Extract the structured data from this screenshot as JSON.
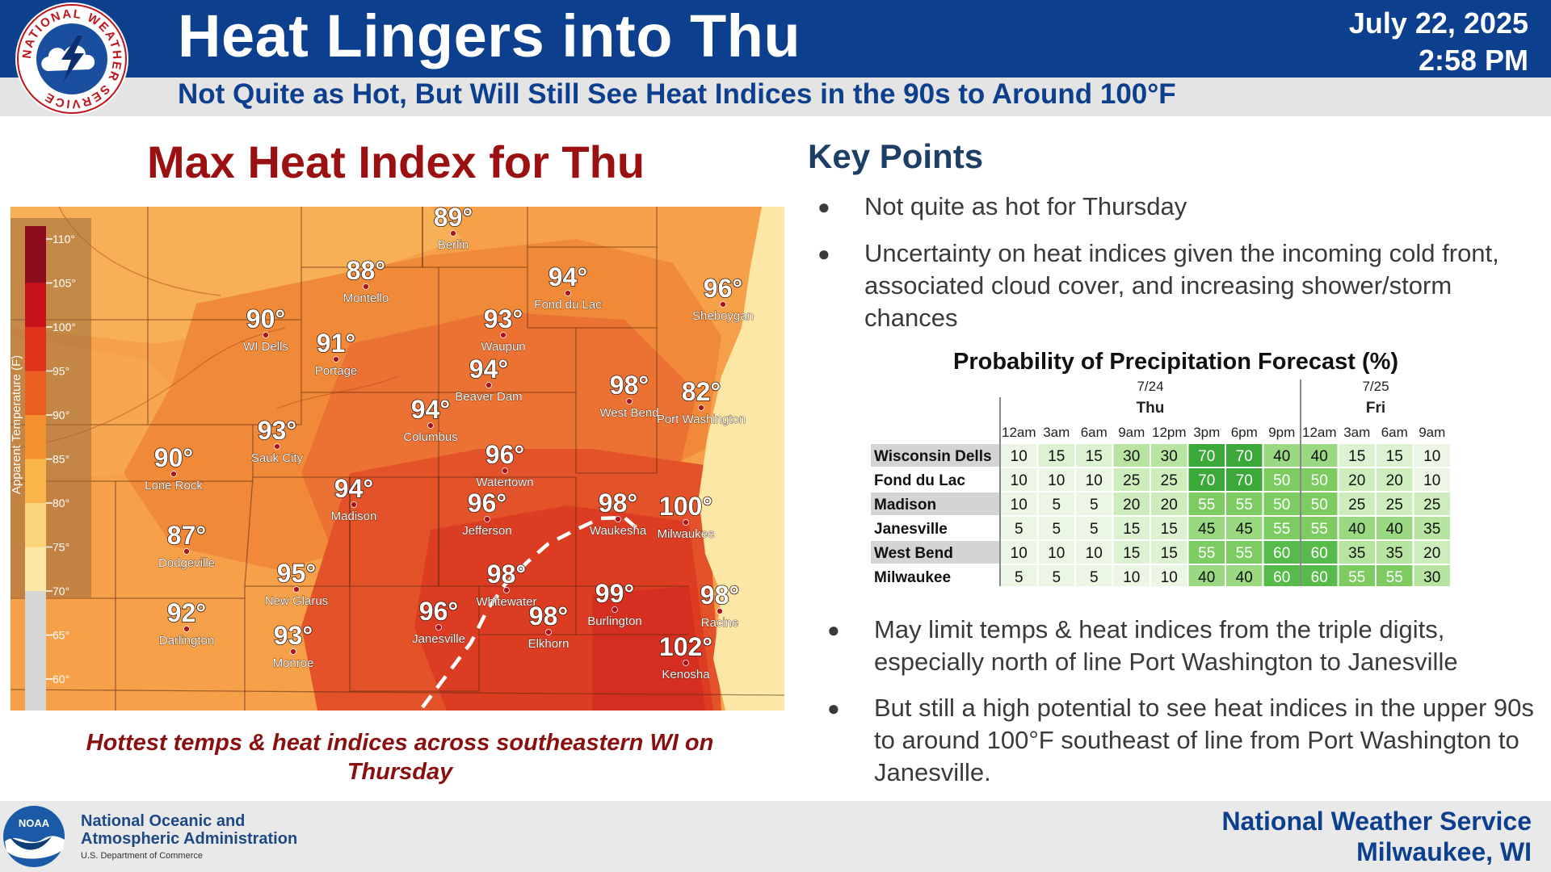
{
  "header": {
    "title": "Heat Lingers into Thu",
    "subtitle": "Not Quite as Hot, But Will Still See Heat Indices in the 90s to Around 100°F",
    "date": "July 22, 2025",
    "time": "2:58 PM",
    "logo_text": "NATIONAL WEATHER SERVICE"
  },
  "map": {
    "title": "Max Heat Index for Thu",
    "caption": "Hottest temps & heat indices across southeastern WI on Thursday",
    "legend_title": "Apparent Temperature (F)",
    "legend_ticks": [
      "110°",
      "105°",
      "100°",
      "95°",
      "90°",
      "85°",
      "80°",
      "75°",
      "70°",
      "65°",
      "60°"
    ],
    "legend_colors": [
      "#8b0d1e",
      "#c8131c",
      "#e0321a",
      "#ee5e22",
      "#f5902e",
      "#f9b54a",
      "#fbd57c",
      "#fde8a8",
      "#d6d6d6",
      "#d6d6d6",
      "#d6d6d6"
    ],
    "cities": [
      {
        "temp": "89°",
        "name": "Berlin"
      },
      {
        "temp": "88°",
        "name": "Montello"
      },
      {
        "temp": "94°",
        "name": "Fond du Lac"
      },
      {
        "temp": "96°",
        "name": "Sheboygan"
      },
      {
        "temp": "90°",
        "name": "WI Dells"
      },
      {
        "temp": "91°",
        "name": "Portage"
      },
      {
        "temp": "93°",
        "name": "Waupun"
      },
      {
        "temp": "94°",
        "name": "Beaver Dam"
      },
      {
        "temp": "98°",
        "name": "West Bend"
      },
      {
        "temp": "82°",
        "name": "Port Washington"
      },
      {
        "temp": "94°",
        "name": "Columbus"
      },
      {
        "temp": "93°",
        "name": "Sauk City"
      },
      {
        "temp": "90°",
        "name": "Lone Rock"
      },
      {
        "temp": "96°",
        "name": "Watertown"
      },
      {
        "temp": "94°",
        "name": "Madison"
      },
      {
        "temp": "96°",
        "name": "Jefferson"
      },
      {
        "temp": "98°",
        "name": "Waukesha"
      },
      {
        "temp": "100°",
        "name": "Milwaukee"
      },
      {
        "temp": "87°",
        "name": "Dodgeville"
      },
      {
        "temp": "95°",
        "name": "New Glarus"
      },
      {
        "temp": "98°",
        "name": "Whitewater"
      },
      {
        "temp": "92°",
        "name": "Darlington"
      },
      {
        "temp": "96°",
        "name": "Janesville"
      },
      {
        "temp": "98°",
        "name": "Elkhorn"
      },
      {
        "temp": "99°",
        "name": "Burlington"
      },
      {
        "temp": "98°",
        "name": "Racine"
      },
      {
        "temp": "93°",
        "name": "Monroe"
      },
      {
        "temp": "102°",
        "name": "Kenosha"
      }
    ]
  },
  "key_points": {
    "title": "Key Points",
    "bullets": [
      "Not quite as hot for Thursday",
      "Uncertainty on heat indices given the incoming cold front, associated cloud cover, and increasing shower/storm chances",
      "May limit temps & heat indices from the triple digits, especially north of line Port Washington to Janesville",
      "But still a high potential to see heat indices in the upper 90s to around 100°F southeast of line from Port Washington to Janesville."
    ]
  },
  "pop_table": {
    "title": "Probability of Precipitation Forecast (%)",
    "groups": [
      {
        "date": "7/24",
        "day": "Thu"
      },
      {
        "date": "7/25",
        "day": "Fri"
      }
    ],
    "hours": [
      "12am",
      "3am",
      "6am",
      "9am",
      "12pm",
      "3pm",
      "6pm",
      "9pm",
      "12am",
      "3am",
      "6am",
      "9am"
    ],
    "rows": [
      {
        "location": "Wisconsin Dells",
        "values": [
          10,
          15,
          15,
          30,
          30,
          70,
          70,
          40,
          40,
          15,
          15,
          10
        ]
      },
      {
        "location": "Fond du Lac",
        "values": [
          10,
          10,
          10,
          25,
          25,
          70,
          70,
          50,
          50,
          20,
          20,
          10
        ]
      },
      {
        "location": "Madison",
        "values": [
          10,
          5,
          5,
          20,
          20,
          55,
          55,
          50,
          50,
          25,
          25,
          25
        ]
      },
      {
        "location": "Janesville",
        "values": [
          5,
          5,
          5,
          15,
          15,
          45,
          45,
          55,
          55,
          40,
          40,
          35
        ]
      },
      {
        "location": "West Bend",
        "values": [
          10,
          10,
          10,
          15,
          15,
          55,
          55,
          60,
          60,
          35,
          35,
          20
        ]
      },
      {
        "location": "Milwaukee",
        "values": [
          5,
          5,
          5,
          10,
          10,
          40,
          40,
          60,
          60,
          55,
          55,
          30
        ]
      }
    ]
  },
  "footer": {
    "noaa_line1": "National Oceanic and",
    "noaa_line2": "Atmospheric Administration",
    "noaa_sub": "U.S. Department of Commerce",
    "noaa_logo_text": "NOAA",
    "office_line1": "National Weather Service",
    "office_line2": "Milwaukee, WI"
  }
}
